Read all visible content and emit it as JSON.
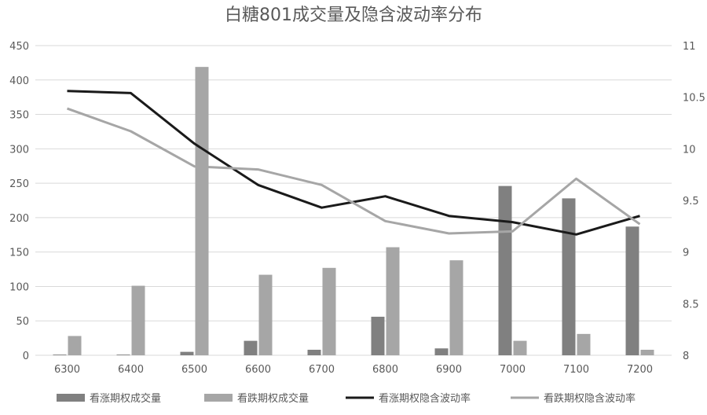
{
  "chart_data": {
    "type": "bar",
    "title": "白糖801成交量及隐含波动率分布",
    "categories": [
      "6300",
      "6400",
      "6500",
      "6600",
      "6700",
      "6800",
      "6900",
      "7000",
      "7100",
      "7200"
    ],
    "y_left": {
      "ticks": [
        "0",
        "50",
        "100",
        "150",
        "200",
        "250",
        "300",
        "350",
        "400",
        "450"
      ],
      "range": [
        0,
        450
      ]
    },
    "y_right": {
      "ticks": [
        "8",
        "8.5",
        "9",
        "9.5",
        "10",
        "10.5",
        "11"
      ],
      "range": [
        8,
        11
      ]
    },
    "grid": true,
    "legend_position": "bottom",
    "bar_series": [
      {
        "name": "看涨期权成交量",
        "color": "#808080",
        "values": [
          1,
          1,
          5,
          21,
          8,
          56,
          10,
          246,
          228,
          187
        ]
      },
      {
        "name": "看跌期权成交量",
        "color": "#a6a6a6",
        "values": [
          28,
          101,
          419,
          117,
          127,
          157,
          138,
          21,
          31,
          8
        ]
      }
    ],
    "line_series": [
      {
        "name": "看涨期权隐含波动率",
        "color": "#1a1a1a",
        "values": [
          10.56,
          10.54,
          10.05,
          9.65,
          9.43,
          9.54,
          9.35,
          9.29,
          9.17,
          9.35
        ]
      },
      {
        "name": "看跌期权隐含波动率",
        "color": "#a6a6a6",
        "values": [
          10.39,
          10.17,
          9.83,
          9.8,
          9.65,
          9.3,
          9.18,
          9.2,
          9.71,
          9.27
        ]
      }
    ]
  }
}
